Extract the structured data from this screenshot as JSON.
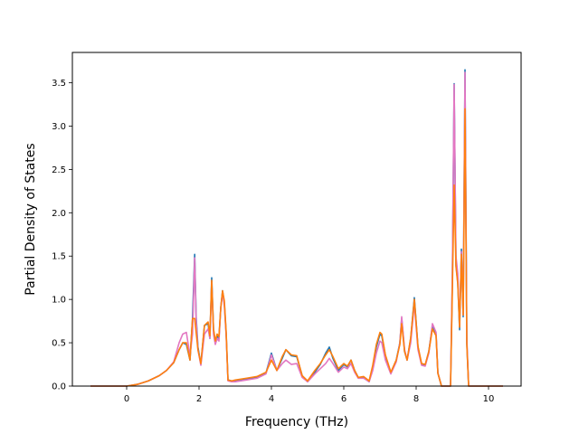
{
  "chart_data": {
    "type": "line",
    "title": "",
    "xlabel": "Frequency (THz)",
    "ylabel": "Partial Density of States",
    "xlim": [
      -1.5,
      10.9
    ],
    "ylim": [
      0.0,
      3.85
    ],
    "xticks": [
      0,
      2,
      4,
      6,
      8,
      10
    ],
    "yticks": [
      0.0,
      0.5,
      1.0,
      1.5,
      2.0,
      2.5,
      3.0,
      3.5
    ],
    "xtick_labels": [
      "0",
      "2",
      "4",
      "6",
      "8",
      "10"
    ],
    "ytick_labels": [
      "0.0",
      "0.5",
      "1.0",
      "1.5",
      "2.0",
      "2.5",
      "3.0",
      "3.5"
    ],
    "grid": false,
    "legend": "none",
    "series": [
      {
        "color": "#1f77b4",
        "x": [
          -1.0,
          -0.5,
          0.0,
          0.3,
          0.6,
          0.9,
          1.1,
          1.3,
          1.45,
          1.55,
          1.65,
          1.75,
          1.82,
          1.88,
          1.92,
          1.97,
          2.05,
          2.15,
          2.25,
          2.3,
          2.35,
          2.4,
          2.45,
          2.5,
          2.55,
          2.6,
          2.65,
          2.7,
          2.75,
          2.8,
          2.9,
          3.0,
          3.3,
          3.6,
          3.85,
          4.0,
          4.15,
          4.3,
          4.4,
          4.55,
          4.7,
          4.85,
          5.0,
          5.2,
          5.35,
          5.5,
          5.6,
          5.7,
          5.85,
          6.0,
          6.1,
          6.2,
          6.3,
          6.4,
          6.55,
          6.7,
          6.8,
          6.9,
          7.0,
          7.05,
          7.15,
          7.3,
          7.45,
          7.55,
          7.6,
          7.68,
          7.75,
          7.85,
          7.95,
          8.05,
          8.15,
          8.25,
          8.35,
          8.45,
          8.55,
          8.6,
          8.7,
          8.9,
          8.95,
          9.0,
          9.05,
          9.1,
          9.15,
          9.2,
          9.25,
          9.3,
          9.35,
          9.4,
          9.45,
          9.5,
          9.7,
          10.4
        ],
        "y": [
          0.0,
          0.0,
          0.0,
          0.02,
          0.06,
          0.12,
          0.18,
          0.27,
          0.42,
          0.5,
          0.48,
          0.3,
          0.78,
          1.52,
          0.8,
          0.45,
          0.25,
          0.7,
          0.72,
          0.55,
          1.25,
          0.65,
          0.5,
          0.58,
          0.55,
          0.9,
          1.1,
          0.95,
          0.6,
          0.07,
          0.06,
          0.06,
          0.08,
          0.1,
          0.15,
          0.38,
          0.18,
          0.32,
          0.42,
          0.35,
          0.34,
          0.12,
          0.05,
          0.16,
          0.25,
          0.38,
          0.45,
          0.32,
          0.18,
          0.25,
          0.22,
          0.3,
          0.18,
          0.1,
          0.1,
          0.05,
          0.22,
          0.45,
          0.6,
          0.58,
          0.35,
          0.15,
          0.3,
          0.5,
          0.78,
          0.4,
          0.3,
          0.55,
          1.02,
          0.45,
          0.25,
          0.24,
          0.4,
          0.7,
          0.6,
          0.15,
          0.0,
          0.0,
          0.0,
          1.2,
          3.49,
          1.4,
          1.2,
          0.65,
          1.58,
          0.8,
          3.65,
          0.5,
          0.0,
          0.0,
          0.0,
          0.0
        ]
      },
      {
        "color": "#e377c2",
        "x": [
          -1.0,
          -0.5,
          0.0,
          0.3,
          0.6,
          0.9,
          1.1,
          1.3,
          1.45,
          1.55,
          1.65,
          1.75,
          1.82,
          1.88,
          1.92,
          1.97,
          2.05,
          2.15,
          2.25,
          2.3,
          2.35,
          2.4,
          2.45,
          2.5,
          2.55,
          2.6,
          2.65,
          2.7,
          2.75,
          2.8,
          2.9,
          3.0,
          3.3,
          3.6,
          3.85,
          4.0,
          4.15,
          4.3,
          4.4,
          4.55,
          4.7,
          4.85,
          5.0,
          5.2,
          5.35,
          5.5,
          5.6,
          5.7,
          5.85,
          6.0,
          6.1,
          6.2,
          6.3,
          6.4,
          6.55,
          6.7,
          6.8,
          6.9,
          7.0,
          7.05,
          7.15,
          7.3,
          7.45,
          7.55,
          7.6,
          7.68,
          7.75,
          7.85,
          7.95,
          8.05,
          8.15,
          8.25,
          8.35,
          8.45,
          8.55,
          8.6,
          8.7,
          8.9,
          8.95,
          9.0,
          9.05,
          9.1,
          9.15,
          9.2,
          9.25,
          9.3,
          9.35,
          9.4,
          9.45,
          9.5,
          9.7,
          10.4
        ],
        "y": [
          0.0,
          0.0,
          0.0,
          0.02,
          0.06,
          0.12,
          0.18,
          0.28,
          0.5,
          0.6,
          0.62,
          0.35,
          0.6,
          1.48,
          0.75,
          0.42,
          0.24,
          0.6,
          0.66,
          0.55,
          1.2,
          0.6,
          0.48,
          0.55,
          0.52,
          0.9,
          1.08,
          0.92,
          0.58,
          0.06,
          0.05,
          0.05,
          0.07,
          0.09,
          0.14,
          0.36,
          0.18,
          0.26,
          0.3,
          0.25,
          0.26,
          0.1,
          0.05,
          0.14,
          0.2,
          0.26,
          0.32,
          0.26,
          0.16,
          0.22,
          0.2,
          0.26,
          0.16,
          0.09,
          0.09,
          0.05,
          0.18,
          0.38,
          0.52,
          0.5,
          0.3,
          0.14,
          0.28,
          0.5,
          0.8,
          0.42,
          0.3,
          0.5,
          0.95,
          0.42,
          0.24,
          0.23,
          0.38,
          0.72,
          0.62,
          0.15,
          0.0,
          0.0,
          0.0,
          1.3,
          3.48,
          1.5,
          1.3,
          0.7,
          1.55,
          0.82,
          3.62,
          0.55,
          0.0,
          0.0,
          0.0,
          0.0
        ]
      },
      {
        "color": "#ff7f0e",
        "x": [
          -1.0,
          -0.5,
          0.0,
          0.3,
          0.6,
          0.9,
          1.1,
          1.3,
          1.45,
          1.55,
          1.65,
          1.75,
          1.82,
          1.88,
          1.92,
          1.97,
          2.05,
          2.15,
          2.25,
          2.3,
          2.35,
          2.4,
          2.45,
          2.5,
          2.55,
          2.6,
          2.65,
          2.7,
          2.75,
          2.8,
          2.9,
          3.0,
          3.3,
          3.6,
          3.85,
          4.0,
          4.15,
          4.3,
          4.4,
          4.55,
          4.7,
          4.85,
          5.0,
          5.2,
          5.35,
          5.5,
          5.6,
          5.7,
          5.85,
          6.0,
          6.1,
          6.2,
          6.3,
          6.4,
          6.55,
          6.7,
          6.8,
          6.9,
          7.0,
          7.05,
          7.15,
          7.3,
          7.45,
          7.55,
          7.6,
          7.68,
          7.75,
          7.85,
          7.95,
          8.05,
          8.15,
          8.25,
          8.35,
          8.45,
          8.55,
          8.6,
          8.7,
          8.9,
          8.95,
          9.0,
          9.05,
          9.1,
          9.15,
          9.2,
          9.25,
          9.3,
          9.35,
          9.4,
          9.45,
          9.5,
          9.7,
          10.4
        ],
        "y": [
          0.0,
          0.0,
          0.0,
          0.02,
          0.06,
          0.12,
          0.18,
          0.27,
          0.42,
          0.5,
          0.5,
          0.3,
          0.78,
          0.78,
          0.62,
          0.42,
          0.26,
          0.7,
          0.74,
          0.58,
          1.22,
          0.66,
          0.52,
          0.6,
          0.57,
          0.9,
          1.1,
          0.98,
          0.62,
          0.07,
          0.06,
          0.07,
          0.09,
          0.11,
          0.16,
          0.3,
          0.18,
          0.34,
          0.42,
          0.36,
          0.35,
          0.12,
          0.06,
          0.18,
          0.26,
          0.36,
          0.42,
          0.34,
          0.2,
          0.26,
          0.23,
          0.3,
          0.18,
          0.1,
          0.11,
          0.06,
          0.24,
          0.48,
          0.62,
          0.6,
          0.36,
          0.16,
          0.3,
          0.48,
          0.72,
          0.4,
          0.3,
          0.56,
          1.0,
          0.46,
          0.26,
          0.25,
          0.4,
          0.66,
          0.58,
          0.15,
          0.0,
          0.0,
          0.0,
          1.1,
          2.32,
          1.38,
          1.18,
          0.68,
          1.52,
          0.82,
          3.2,
          0.48,
          0.0,
          0.0,
          0.0,
          0.0
        ]
      }
    ]
  }
}
